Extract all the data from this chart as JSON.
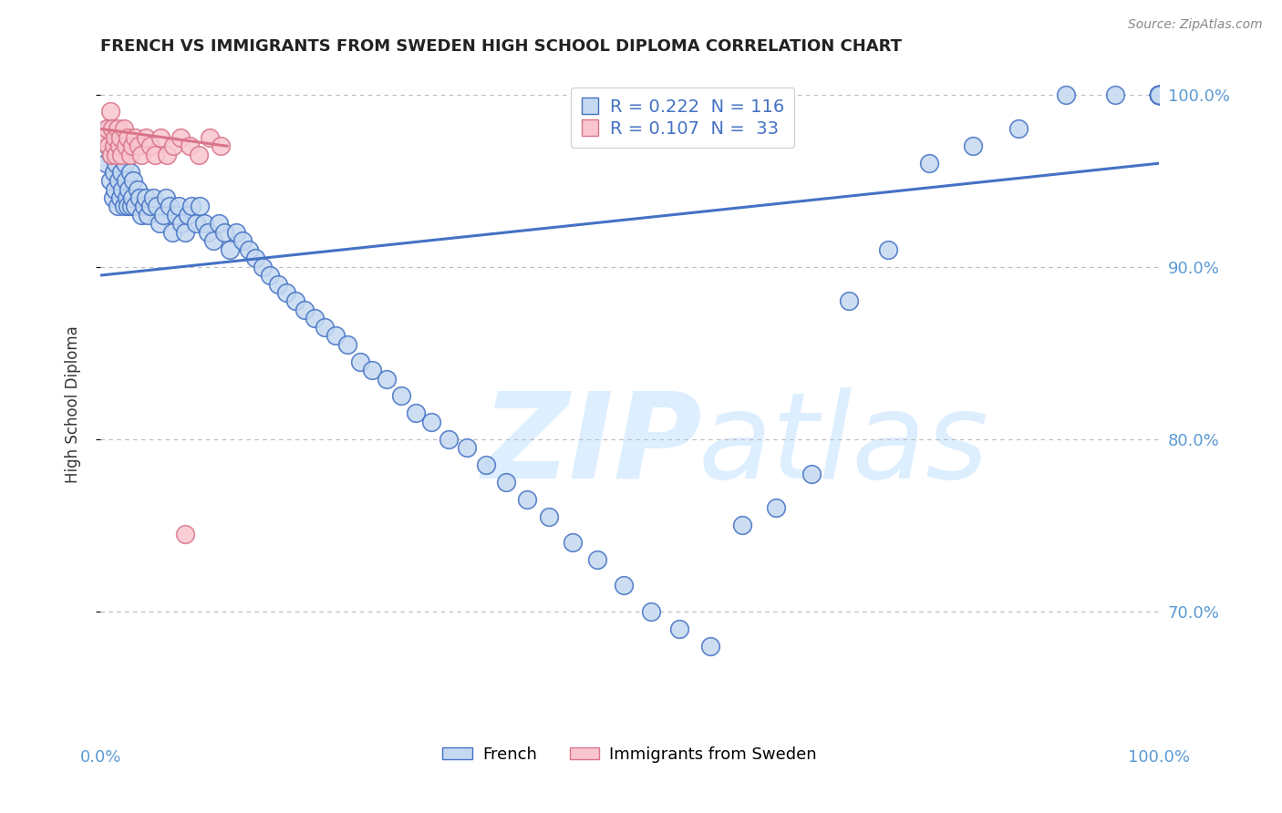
{
  "title": "FRENCH VS IMMIGRANTS FROM SWEDEN HIGH SCHOOL DIPLOMA CORRELATION CHART",
  "source_text": "Source: ZipAtlas.com",
  "ylabel": "High School Diploma",
  "xlim": [
    0.0,
    1.0
  ],
  "ylim": [
    0.625,
    1.015
  ],
  "french_R": 0.222,
  "french_N": 116,
  "swedish_R": 0.107,
  "swedish_N": 33,
  "blue_fill": "#c5d9f1",
  "blue_edge": "#4472c4",
  "pink_fill": "#f9c6cf",
  "pink_edge": "#d9748a",
  "blue_line": "#4472c4",
  "pink_line": "#d9748a",
  "watermark_color": "#ddeeff",
  "title_color": "#222222",
  "axis_color": "#5b9bd5",
  "grid_color": "#bbbbbb",
  "yticks": [
    0.7,
    0.8,
    0.9,
    1.0
  ],
  "ytick_labels": [
    "70.0%",
    "80.0%",
    "90.0%",
    "100.0%"
  ],
  "french_x": [
    0.005,
    0.007,
    0.008,
    0.009,
    0.01,
    0.011,
    0.012,
    0.013,
    0.014,
    0.015,
    0.016,
    0.017,
    0.018,
    0.019,
    0.02,
    0.021,
    0.022,
    0.023,
    0.024,
    0.025,
    0.026,
    0.027,
    0.028,
    0.029,
    0.03,
    0.031,
    0.033,
    0.035,
    0.037,
    0.039,
    0.041,
    0.043,
    0.045,
    0.047,
    0.05,
    0.053,
    0.056,
    0.059,
    0.062,
    0.065,
    0.068,
    0.071,
    0.074,
    0.077,
    0.08,
    0.083,
    0.086,
    0.09,
    0.094,
    0.098,
    0.102,
    0.107,
    0.112,
    0.117,
    0.122,
    0.128,
    0.134,
    0.14,
    0.146,
    0.153,
    0.16,
    0.168,
    0.176,
    0.184,
    0.193,
    0.202,
    0.212,
    0.222,
    0.233,
    0.245,
    0.257,
    0.27,
    0.284,
    0.298,
    0.313,
    0.329,
    0.346,
    0.364,
    0.383,
    0.403,
    0.424,
    0.446,
    0.469,
    0.494,
    0.52,
    0.547,
    0.576,
    0.606,
    0.638,
    0.672,
    0.707,
    0.744,
    0.783,
    0.824,
    0.867,
    0.912,
    0.959,
    1.0,
    1.0,
    1.0,
    1.0,
    1.0,
    1.0,
    1.0,
    1.0,
    1.0,
    1.0,
    1.0,
    1.0,
    1.0,
    1.0,
    1.0,
    1.0,
    1.0,
    1.0,
    1.0
  ],
  "french_y": [
    0.96,
    0.97,
    0.98,
    0.95,
    0.965,
    0.975,
    0.94,
    0.955,
    0.945,
    0.96,
    0.935,
    0.95,
    0.965,
    0.94,
    0.955,
    0.945,
    0.935,
    0.96,
    0.95,
    0.94,
    0.935,
    0.945,
    0.955,
    0.935,
    0.94,
    0.95,
    0.935,
    0.945,
    0.94,
    0.93,
    0.935,
    0.94,
    0.93,
    0.935,
    0.94,
    0.935,
    0.925,
    0.93,
    0.94,
    0.935,
    0.92,
    0.93,
    0.935,
    0.925,
    0.92,
    0.93,
    0.935,
    0.925,
    0.935,
    0.925,
    0.92,
    0.915,
    0.925,
    0.92,
    0.91,
    0.92,
    0.915,
    0.91,
    0.905,
    0.9,
    0.895,
    0.89,
    0.885,
    0.88,
    0.875,
    0.87,
    0.865,
    0.86,
    0.855,
    0.845,
    0.84,
    0.835,
    0.825,
    0.815,
    0.81,
    0.8,
    0.795,
    0.785,
    0.775,
    0.765,
    0.755,
    0.74,
    0.73,
    0.715,
    0.7,
    0.69,
    0.68,
    0.75,
    0.76,
    0.78,
    0.88,
    0.91,
    0.96,
    0.97,
    0.98,
    1.0,
    1.0,
    1.0,
    1.0,
    1.0,
    1.0,
    1.0,
    1.0,
    1.0,
    1.0,
    1.0,
    1.0,
    1.0,
    1.0,
    1.0,
    1.0,
    1.0,
    1.0,
    1.0,
    1.0,
    1.0
  ],
  "swedish_x": [
    0.004,
    0.006,
    0.008,
    0.009,
    0.01,
    0.011,
    0.013,
    0.014,
    0.015,
    0.016,
    0.018,
    0.019,
    0.02,
    0.022,
    0.024,
    0.026,
    0.028,
    0.03,
    0.033,
    0.036,
    0.039,
    0.043,
    0.047,
    0.052,
    0.057,
    0.063,
    0.069,
    0.076,
    0.084,
    0.093,
    0.103,
    0.114,
    0.08
  ],
  "swedish_y": [
    0.975,
    0.98,
    0.97,
    0.99,
    0.965,
    0.98,
    0.97,
    0.975,
    0.965,
    0.98,
    0.97,
    0.975,
    0.965,
    0.98,
    0.97,
    0.975,
    0.965,
    0.97,
    0.975,
    0.97,
    0.965,
    0.975,
    0.97,
    0.965,
    0.975,
    0.965,
    0.97,
    0.975,
    0.97,
    0.965,
    0.975,
    0.97,
    0.745
  ],
  "blue_trend_x": [
    0.0,
    1.0
  ],
  "blue_trend_y": [
    0.895,
    0.96
  ],
  "pink_trend_x": [
    0.0,
    0.12
  ],
  "pink_trend_y": [
    0.98,
    0.97
  ]
}
